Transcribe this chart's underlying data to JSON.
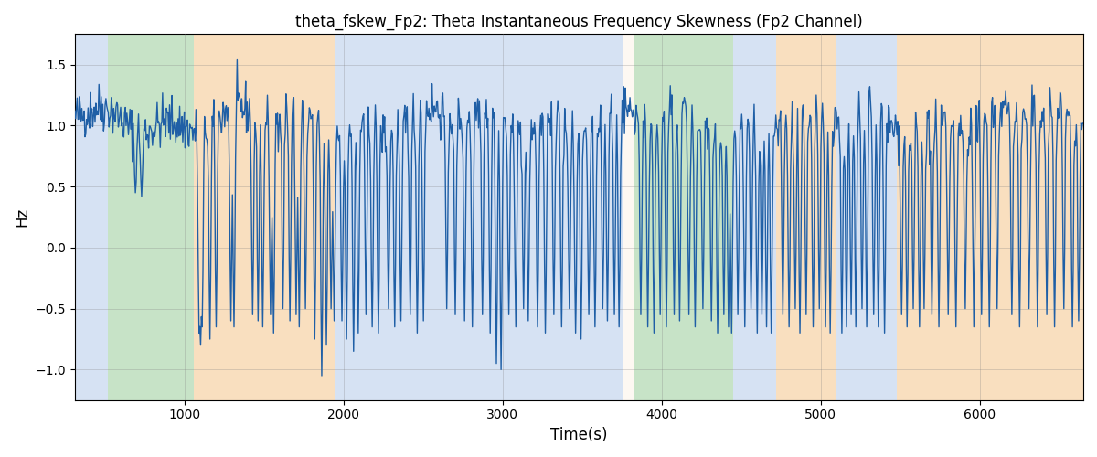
{
  "title": "theta_fskew_Fp2: Theta Instantaneous Frequency Skewness (Fp2 Channel)",
  "xlabel": "Time(s)",
  "ylabel": "Hz",
  "line_color": "#1f5fa6",
  "line_width": 1.0,
  "bg_color": "#ffffff",
  "ylim": [
    -1.25,
    1.75
  ],
  "xlim": [
    310,
    6650
  ],
  "x_ticks": [
    1000,
    2000,
    3000,
    4000,
    5000,
    6000
  ],
  "y_ticks": [
    -1.0,
    -0.5,
    0.0,
    0.5,
    1.0,
    1.5
  ],
  "title_fontsize": 12,
  "regions": [
    {
      "start": 310,
      "end": 520,
      "color": "#aec6e8",
      "alpha": 0.5
    },
    {
      "start": 520,
      "end": 1060,
      "color": "#90c990",
      "alpha": 0.5
    },
    {
      "start": 1060,
      "end": 1950,
      "color": "#f5c080",
      "alpha": 0.5
    },
    {
      "start": 1950,
      "end": 2580,
      "color": "#aec6e8",
      "alpha": 0.5
    },
    {
      "start": 2580,
      "end": 3760,
      "color": "#aec6e8",
      "alpha": 0.5
    },
    {
      "start": 3760,
      "end": 3820,
      "color": "#f5c080",
      "alpha": 0.1
    },
    {
      "start": 3820,
      "end": 4450,
      "color": "#90c990",
      "alpha": 0.5
    },
    {
      "start": 4450,
      "end": 4720,
      "color": "#aec6e8",
      "alpha": 0.5
    },
    {
      "start": 4720,
      "end": 5100,
      "color": "#f5c080",
      "alpha": 0.5
    },
    {
      "start": 5100,
      "end": 5480,
      "color": "#aec6e8",
      "alpha": 0.5
    },
    {
      "start": 5480,
      "end": 6650,
      "color": "#f5c080",
      "alpha": 0.5
    }
  ],
  "seed": 42,
  "n_points": 1300,
  "t_start": 310,
  "t_end": 6650
}
